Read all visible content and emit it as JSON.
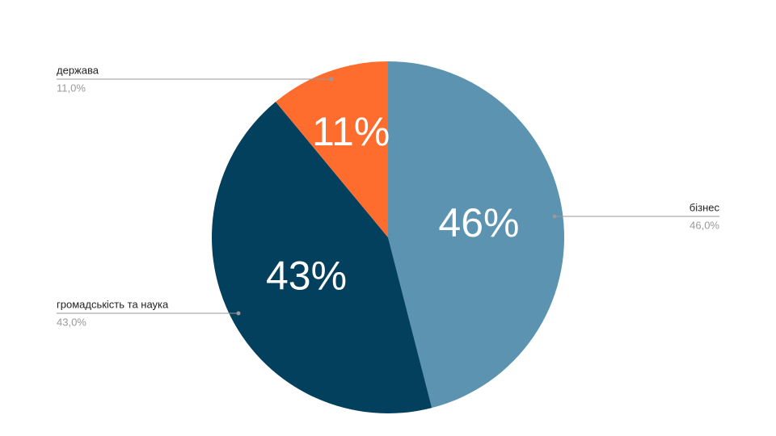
{
  "chart_data": {
    "type": "pie",
    "categories": [
      "бізнес",
      "громадськість та наука",
      "держава"
    ],
    "values": [
      46,
      43,
      11
    ],
    "value_labels": [
      "46%",
      "43%",
      "11%"
    ],
    "outside_labels": [
      "46,0%",
      "43,0%",
      "11,0%"
    ],
    "colors": [
      "#5b93b0",
      "#03405e",
      "#ff6d2e"
    ]
  }
}
